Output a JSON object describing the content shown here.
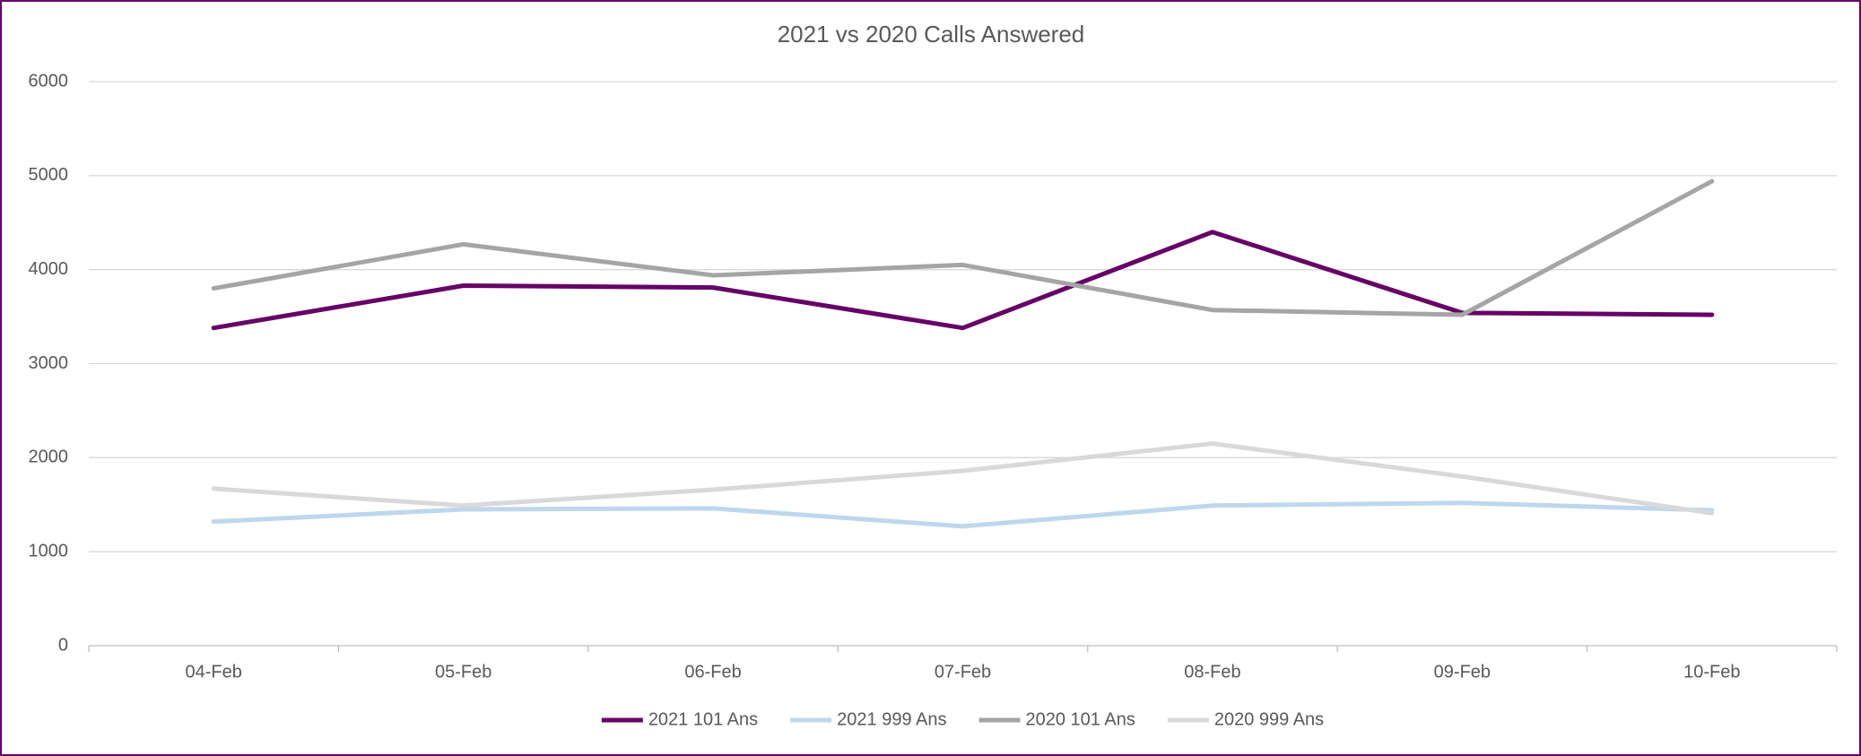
{
  "chart_data": {
    "type": "line",
    "title": "2021 vs 2020 Calls Answered",
    "categories": [
      "04-Feb",
      "05-Feb",
      "06-Feb",
      "07-Feb",
      "08-Feb",
      "09-Feb",
      "10-Feb"
    ],
    "series": [
      {
        "name": "2021 101 Ans",
        "color": "#660066",
        "values": [
          3380,
          3830,
          3810,
          3380,
          4400,
          3540,
          3520
        ]
      },
      {
        "name": "2021 999 Ans",
        "color": "#bdd7ee",
        "values": [
          1320,
          1450,
          1460,
          1270,
          1490,
          1520,
          1440
        ]
      },
      {
        "name": "2020 101 Ans",
        "color": "#a5a5a5",
        "values": [
          3800,
          4270,
          3940,
          4050,
          3570,
          3520,
          4940
        ]
      },
      {
        "name": "2020 999 Ans",
        "color": "#d9d9d9",
        "values": [
          1670,
          1490,
          1660,
          1860,
          2150,
          1800,
          1410
        ]
      }
    ],
    "ylim": [
      0,
      6000
    ],
    "yticks": [
      0,
      1000,
      2000,
      3000,
      4000,
      5000,
      6000
    ],
    "grid": true,
    "legend": "bottom"
  }
}
